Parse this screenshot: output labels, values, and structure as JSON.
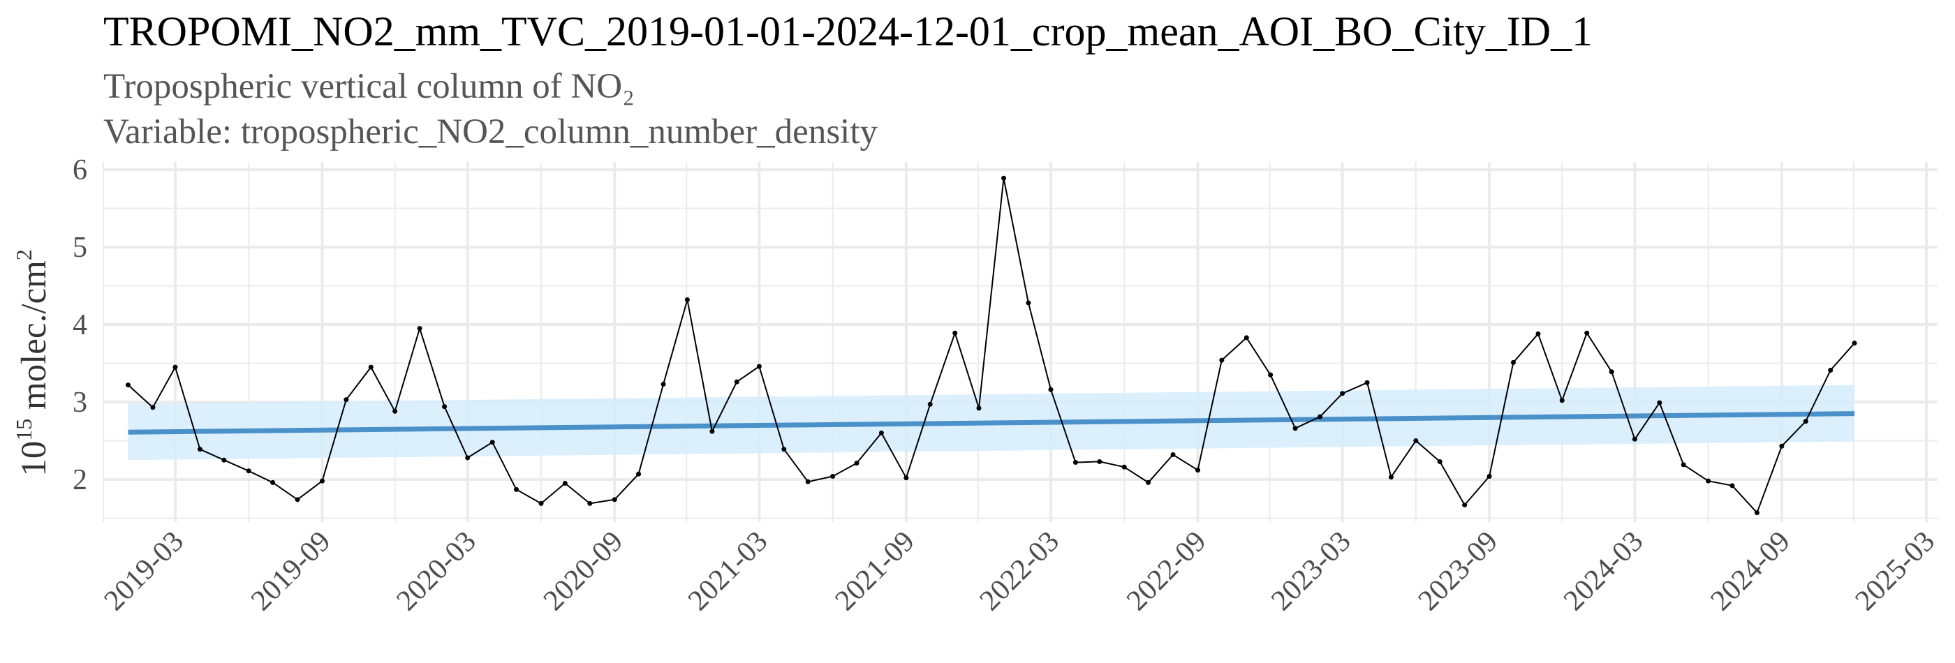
{
  "chart_data": {
    "type": "line",
    "title": "TROPOMI_NO2_mm_TVC_2019-01-01-2024-12-01_crop_mean_AOI_BO_City_ID_1",
    "subtitle_lines": [
      "Tropospheric vertical column of NO₂",
      "Variable: tropospheric_NO2_column_number_density"
    ],
    "ylabel": {
      "base": "10",
      "exponent": "15",
      "text": " molec./cm",
      "unit_exponent": "2"
    },
    "xlabel": "",
    "x_ticks": [
      "2019-03",
      "2019-09",
      "2020-03",
      "2020-09",
      "2021-03",
      "2021-09",
      "2022-03",
      "2022-09",
      "2023-03",
      "2023-09",
      "2024-03",
      "2024-09",
      "2025-03"
    ],
    "y_ticks": [
      2,
      3,
      4,
      5,
      6
    ],
    "ylim": [
      1.45,
      6.1
    ],
    "xlim": [
      "2018-12-01",
      "2025-03-15"
    ],
    "grid": true,
    "legend": "none",
    "colors": {
      "series": "#000000",
      "trend": "#4a90c9",
      "band": "#d6ecfd",
      "grid": "#ebebeb"
    },
    "series": [
      {
        "x": [
          "2019-01",
          "2019-02",
          "2019-03",
          "2019-04",
          "2019-05",
          "2019-06",
          "2019-07",
          "2019-08",
          "2019-09",
          "2019-10",
          "2019-11",
          "2019-12",
          "2020-01",
          "2020-02",
          "2020-03",
          "2020-04",
          "2020-05",
          "2020-06",
          "2020-07",
          "2020-08",
          "2020-09",
          "2020-10",
          "2020-11",
          "2020-12",
          "2021-01",
          "2021-02",
          "2021-03",
          "2021-04",
          "2021-05",
          "2021-06",
          "2021-07",
          "2021-08",
          "2021-09",
          "2021-10",
          "2021-11",
          "2021-12",
          "2022-01",
          "2022-02",
          "2022-03",
          "2022-04",
          "2022-05",
          "2022-06",
          "2022-07",
          "2022-08",
          "2022-09",
          "2022-10",
          "2022-11",
          "2022-12",
          "2023-01",
          "2023-02",
          "2023-03",
          "2023-04",
          "2023-05",
          "2023-06",
          "2023-07",
          "2023-08",
          "2023-09",
          "2023-10",
          "2023-11",
          "2023-12",
          "2024-01",
          "2024-02",
          "2024-03",
          "2024-04",
          "2024-05",
          "2024-06",
          "2024-07",
          "2024-08",
          "2024-09",
          "2024-10",
          "2024-11",
          "2024-12"
        ],
        "values": [
          3.22,
          2.93,
          3.45,
          2.39,
          2.25,
          2.11,
          1.96,
          1.74,
          1.98,
          3.03,
          3.45,
          2.88,
          3.95,
          2.94,
          2.28,
          2.48,
          1.87,
          1.69,
          1.95,
          1.69,
          1.74,
          2.07,
          3.23,
          4.32,
          2.62,
          3.26,
          3.46,
          2.39,
          1.97,
          2.04,
          2.21,
          2.6,
          2.02,
          2.97,
          3.89,
          2.92,
          5.89,
          4.28,
          3.16,
          2.22,
          2.23,
          2.16,
          1.96,
          2.32,
          2.12,
          3.54,
          3.83,
          3.35,
          2.66,
          2.81,
          3.11,
          3.25,
          2.03,
          2.5,
          2.23,
          1.67,
          2.04,
          3.51,
          3.88,
          3.02,
          3.89,
          3.39,
          2.52,
          2.99,
          2.19,
          1.98,
          1.92,
          1.57,
          2.43,
          2.75,
          3.41,
          3.76
        ]
      }
    ],
    "trend": {
      "x": [
        "2019-01",
        "2024-12"
      ],
      "values": [
        2.61,
        2.85
      ],
      "band_upper": [
        2.98,
        3.22
      ],
      "band_lower": [
        2.25,
        2.49
      ]
    }
  }
}
